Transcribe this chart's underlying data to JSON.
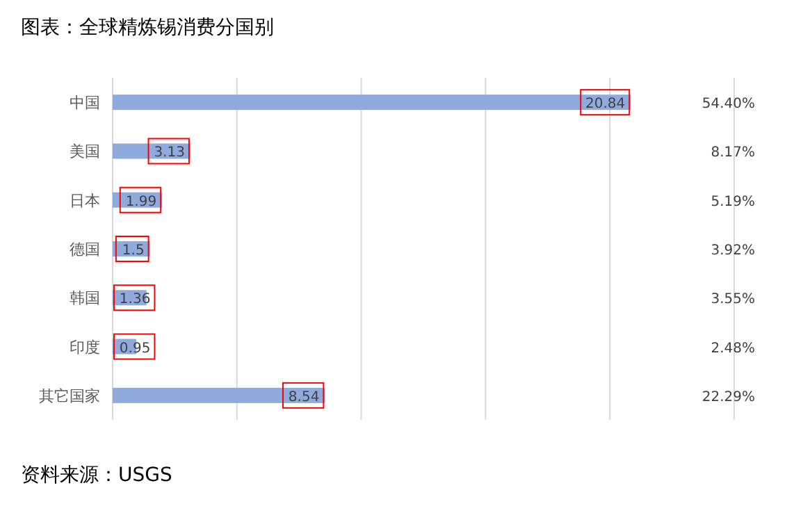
{
  "chart_data": {
    "type": "bar",
    "orientation": "horizontal",
    "title": "图表：全球精炼锡消费分国别",
    "categories": [
      "中国",
      "美国",
      "日本",
      "德国",
      "韩国",
      "印度",
      "其它国家"
    ],
    "values": [
      20.84,
      3.13,
      1.99,
      1.5,
      1.36,
      0.95,
      8.54
    ],
    "color": "#8faadc",
    "xlim": [
      0,
      25
    ],
    "xticks": [
      {
        "value": 0,
        "label": null
      },
      {
        "value": 5,
        "label": null
      },
      {
        "value": 10,
        "label": null
      },
      {
        "value": 15,
        "label": null
      },
      {
        "value": 20,
        "label": null
      },
      {
        "value": 25,
        "label": null
      }
    ],
    "grid": "x",
    "tick_labels": "y",
    "data_labels": true,
    "annotations": [
      "54.40%",
      "8.17%",
      "5.19%",
      "3.92%",
      "3.55%",
      "2.48%",
      "22.29%",
      "资料来源：USGS"
    ]
  }
}
